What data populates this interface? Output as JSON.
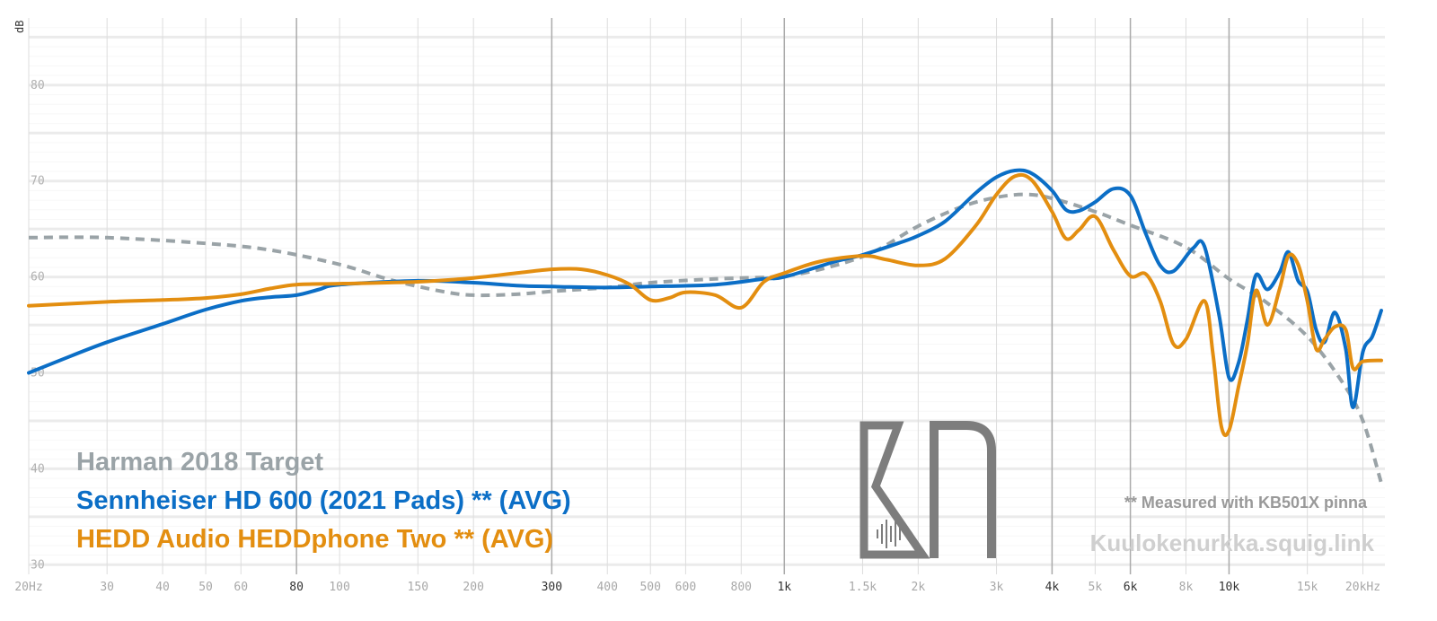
{
  "chart_data": {
    "type": "line",
    "ylabel": "dB",
    "ylim": [
      29,
      87
    ],
    "xlim": [
      20,
      22000
    ],
    "x_scale": "log",
    "y_ticks": [
      30,
      40,
      50,
      60,
      70,
      80
    ],
    "x_ticks": [
      {
        "f": 20,
        "label": "20Hz",
        "major": false
      },
      {
        "f": 30,
        "label": "30",
        "major": false
      },
      {
        "f": 40,
        "label": "40",
        "major": false
      },
      {
        "f": 50,
        "label": "50",
        "major": false
      },
      {
        "f": 60,
        "label": "60",
        "major": false
      },
      {
        "f": 80,
        "label": "80",
        "major": true
      },
      {
        "f": 100,
        "label": "100",
        "major": false
      },
      {
        "f": 150,
        "label": "150",
        "major": false
      },
      {
        "f": 200,
        "label": "200",
        "major": false
      },
      {
        "f": 300,
        "label": "300",
        "major": true
      },
      {
        "f": 400,
        "label": "400",
        "major": false
      },
      {
        "f": 500,
        "label": "500",
        "major": false
      },
      {
        "f": 600,
        "label": "600",
        "major": false
      },
      {
        "f": 800,
        "label": "800",
        "major": false
      },
      {
        "f": 1000,
        "label": "1k",
        "major": true
      },
      {
        "f": 1500,
        "label": "1.5k",
        "major": false
      },
      {
        "f": 2000,
        "label": "2k",
        "major": false
      },
      {
        "f": 3000,
        "label": "3k",
        "major": false
      },
      {
        "f": 4000,
        "label": "4k",
        "major": true
      },
      {
        "f": 5000,
        "label": "5k",
        "major": false
      },
      {
        "f": 6000,
        "label": "6k",
        "major": true
      },
      {
        "f": 8000,
        "label": "8k",
        "major": false
      },
      {
        "f": 10000,
        "label": "10k",
        "major": true
      },
      {
        "f": 15000,
        "label": "15k",
        "major": false
      },
      {
        "f": 20000,
        "label": "20kHz",
        "major": false
      }
    ],
    "series": [
      {
        "name": "Harman 2018 Target",
        "color": "#9aa3a7",
        "dashed": true,
        "points": [
          [
            20,
            64.1
          ],
          [
            30,
            64.1
          ],
          [
            50,
            63.5
          ],
          [
            70,
            62.8
          ],
          [
            100,
            61.3
          ],
          [
            130,
            59.7
          ],
          [
            170,
            58.5
          ],
          [
            200,
            58.1
          ],
          [
            250,
            58.2
          ],
          [
            300,
            58.5
          ],
          [
            400,
            58.9
          ],
          [
            500,
            59.4
          ],
          [
            700,
            59.8
          ],
          [
            1000,
            60.1
          ],
          [
            1300,
            61.2
          ],
          [
            1600,
            62.7
          ],
          [
            2000,
            65.3
          ],
          [
            2500,
            67.3
          ],
          [
            3000,
            68.3
          ],
          [
            3500,
            68.6
          ],
          [
            4000,
            68.2
          ],
          [
            5000,
            66.8
          ],
          [
            6000,
            65.4
          ],
          [
            8000,
            63.1
          ],
          [
            10000,
            59.8
          ],
          [
            12000,
            57.5
          ],
          [
            15000,
            53.8
          ],
          [
            18000,
            49.0
          ],
          [
            20000,
            45.0
          ],
          [
            22000,
            38.5
          ]
        ]
      },
      {
        "name": "Sennheiser HD 600 (2021 Pads) ** (AVG)",
        "color": "#0b6ec6",
        "dashed": false,
        "points": [
          [
            20,
            50.0
          ],
          [
            25,
            51.8
          ],
          [
            30,
            53.2
          ],
          [
            40,
            55.1
          ],
          [
            50,
            56.6
          ],
          [
            60,
            57.5
          ],
          [
            70,
            57.9
          ],
          [
            80,
            58.1
          ],
          [
            90,
            58.7
          ],
          [
            100,
            59.2
          ],
          [
            150,
            59.6
          ],
          [
            200,
            59.4
          ],
          [
            250,
            59.1
          ],
          [
            300,
            59.0
          ],
          [
            400,
            58.9
          ],
          [
            500,
            59.0
          ],
          [
            700,
            59.2
          ],
          [
            900,
            59.8
          ],
          [
            1000,
            60.0
          ],
          [
            1300,
            61.6
          ],
          [
            1500,
            62.3
          ],
          [
            1800,
            63.5
          ],
          [
            2000,
            64.3
          ],
          [
            2300,
            65.8
          ],
          [
            2700,
            68.8
          ],
          [
            3000,
            70.4
          ],
          [
            3300,
            71.1
          ],
          [
            3600,
            70.8
          ],
          [
            4000,
            69.0
          ],
          [
            4300,
            67.0
          ],
          [
            4600,
            66.9
          ],
          [
            5000,
            67.8
          ],
          [
            5500,
            69.2
          ],
          [
            6000,
            68.5
          ],
          [
            6500,
            64.5
          ],
          [
            7000,
            61.2
          ],
          [
            7500,
            60.6
          ],
          [
            8300,
            63.0
          ],
          [
            8800,
            63.2
          ],
          [
            9500,
            56.0
          ],
          [
            10000,
            49.5
          ],
          [
            10500,
            51.0
          ],
          [
            11000,
            55.5
          ],
          [
            11500,
            60.2
          ],
          [
            12200,
            58.7
          ],
          [
            13000,
            60.5
          ],
          [
            13600,
            62.6
          ],
          [
            14300,
            59.6
          ],
          [
            15000,
            58.5
          ],
          [
            15700,
            54.5
          ],
          [
            16400,
            53.2
          ],
          [
            17300,
            56.3
          ],
          [
            18300,
            52.5
          ],
          [
            19000,
            46.4
          ],
          [
            20000,
            52.2
          ],
          [
            21000,
            53.8
          ],
          [
            22000,
            56.5
          ]
        ]
      },
      {
        "name": "HEDD Audio HEDDphone Two ** (AVG)",
        "color": "#e38e10",
        "dashed": false,
        "points": [
          [
            20,
            57.0
          ],
          [
            30,
            57.4
          ],
          [
            40,
            57.6
          ],
          [
            50,
            57.8
          ],
          [
            60,
            58.2
          ],
          [
            70,
            58.8
          ],
          [
            80,
            59.2
          ],
          [
            100,
            59.3
          ],
          [
            150,
            59.5
          ],
          [
            200,
            59.9
          ],
          [
            250,
            60.4
          ],
          [
            300,
            60.8
          ],
          [
            350,
            60.8
          ],
          [
            400,
            60.2
          ],
          [
            450,
            59.2
          ],
          [
            500,
            57.6
          ],
          [
            550,
            57.8
          ],
          [
            600,
            58.4
          ],
          [
            700,
            58.1
          ],
          [
            800,
            56.8
          ],
          [
            900,
            59.5
          ],
          [
            1000,
            60.4
          ],
          [
            1200,
            61.6
          ],
          [
            1500,
            62.2
          ],
          [
            1700,
            61.8
          ],
          [
            2000,
            61.2
          ],
          [
            2300,
            61.9
          ],
          [
            2700,
            65.4
          ],
          [
            3000,
            68.6
          ],
          [
            3300,
            70.5
          ],
          [
            3600,
            70.1
          ],
          [
            4000,
            66.8
          ],
          [
            4300,
            64.0
          ],
          [
            4600,
            64.9
          ],
          [
            5000,
            66.3
          ],
          [
            5500,
            62.8
          ],
          [
            6000,
            60.1
          ],
          [
            6500,
            60.3
          ],
          [
            7000,
            57.5
          ],
          [
            7500,
            53.0
          ],
          [
            8000,
            53.5
          ],
          [
            8800,
            57.5
          ],
          [
            9200,
            52.0
          ],
          [
            9600,
            44.5
          ],
          [
            10000,
            44.0
          ],
          [
            10500,
            48.5
          ],
          [
            11000,
            53.0
          ],
          [
            11500,
            58.6
          ],
          [
            12200,
            55.0
          ],
          [
            13000,
            58.8
          ],
          [
            13600,
            62.2
          ],
          [
            14300,
            61.3
          ],
          [
            15000,
            57.5
          ],
          [
            15700,
            52.5
          ],
          [
            16400,
            53.5
          ],
          [
            17300,
            54.8
          ],
          [
            18300,
            54.5
          ],
          [
            19000,
            50.5
          ],
          [
            20000,
            51.2
          ],
          [
            22000,
            51.3
          ]
        ]
      }
    ]
  },
  "legend": {
    "target": "Harman 2018 Target",
    "headphone1": "Sennheiser HD 600 (2021 Pads) ** (AVG)",
    "headphone2": "HEDD Audio HEDDphone Two ** (AVG)"
  },
  "note": "** Measured with KB501X pinna",
  "site": "Kuulokenurkka.squig.link",
  "logo": "KN"
}
